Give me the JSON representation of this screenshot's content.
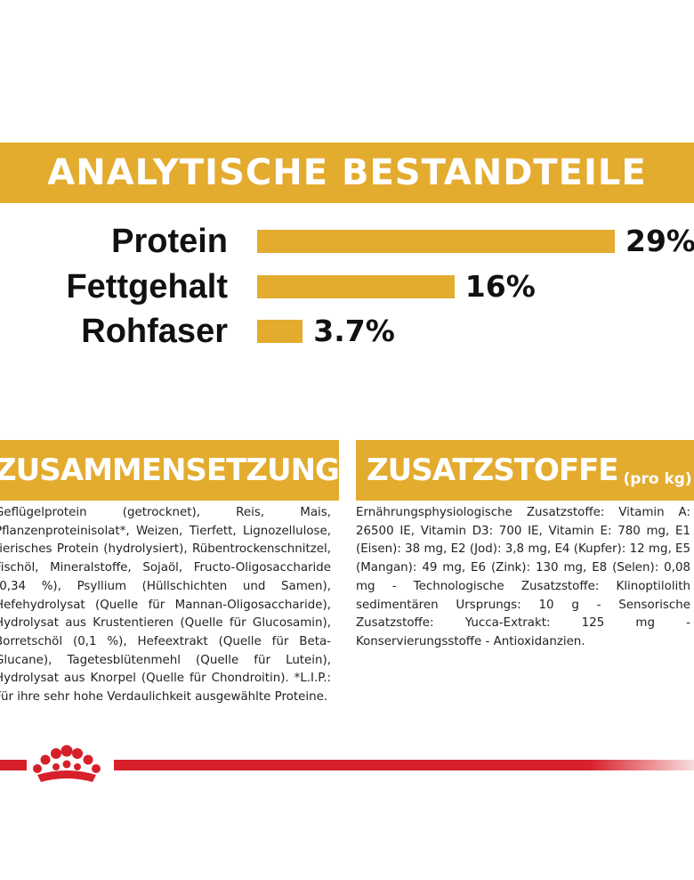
{
  "analysis": {
    "title": "ANALYTISCHE BESTANDTEILE",
    "nutrients": [
      {
        "label": "Protein",
        "value_text": "29%",
        "percent": 29
      },
      {
        "label": "Fettgehalt",
        "value_text": "16%",
        "percent": 16
      },
      {
        "label": "Rohfaser",
        "value_text": "3.7%",
        "percent": 3.7
      }
    ]
  },
  "composition": {
    "title": "ZUSAMMENSETZUNG",
    "text": "Geflügelprotein (getrocknet), Reis, Mais, Pflanzenproteinisolat*, Weizen, Tierfett, Lignozellulose, tierisches Protein (hydrolysiert), Rübentrockenschnitzel, Fischöl, Mineralstoffe, Sojaöl, Fructo-Oligosaccharide (0,34 %), Psyllium (Hüllschichten und Samen), Hefehydrolysat (Quelle für Mannan-Oligosaccharide), Hydrolysat aus Krustentieren (Quelle für Glucosamin), Borretschöl (0,1 %), Hefeextrakt (Quelle für Beta-Glucane), Tagetesblütenmehl (Quelle für Lutein), Hydrolysat aus Knorpel (Quelle für Chondroitin). *L.I.P.: Für ihre sehr hohe Verdaulichkeit ausgewählte Proteine."
  },
  "additives": {
    "title": "ZUSATZSTOFFE",
    "subtitle": "(pro kg)",
    "text": "Ernährungsphysiologische Zusatzstoffe: Vitamin A: 26500 IE, Vitamin D3: 700 IE, Vitamin E: 780 mg, E1 (Eisen): 38 mg, E2 (Jod): 3,8 mg, E4 (Kupfer): 12 mg, E5 (Mangan): 49 mg, E6 (Zink): 130 mg, E8 (Selen): 0,08 mg - Technologische Zusatzstoffe: Klinoptilolith sedimentären Ursprungs: 10 g - Sensorische Zusatzstoffe: Yucca-Extrakt: 125 mg - Konservierungsstoffe - Antioxidanzien."
  },
  "colors": {
    "accent": "#e3ac2f",
    "brand_red": "#d7202a"
  },
  "icons": {
    "brand": "royal-canin-crown-icon"
  }
}
